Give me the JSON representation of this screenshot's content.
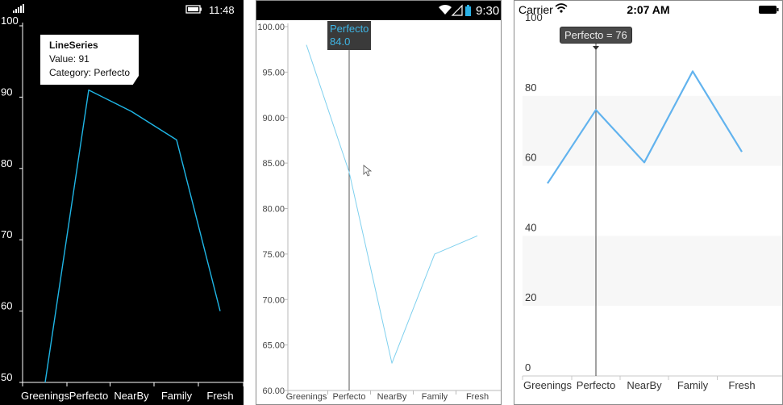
{
  "chart_data": [
    {
      "type": "line",
      "platform": "windows-phone",
      "categories": [
        "Greenings",
        "Perfecto",
        "NearBy",
        "Family",
        "Fresh"
      ],
      "series": [
        {
          "name": "LineSeries",
          "values": [
            50,
            91,
            88,
            84,
            60
          ]
        }
      ],
      "ylim": [
        50,
        100
      ],
      "yticks": [
        "50",
        "60",
        "70",
        "80",
        "90",
        "100"
      ],
      "grid": false,
      "line_color": "#1fb6e6",
      "background": "#000000",
      "tooltip": {
        "title": "LineSeries",
        "value_label": "Value: 91",
        "category_label": "Category: Perfecto"
      }
    },
    {
      "type": "line",
      "platform": "android",
      "categories": [
        "Greenings",
        "Perfecto",
        "NearBy",
        "Family",
        "Fresh"
      ],
      "series": [
        {
          "values": [
            98,
            84,
            63,
            75,
            77
          ]
        }
      ],
      "ylim": [
        60,
        100
      ],
      "yticks": [
        "60.00",
        "65.00",
        "70.00",
        "75.00",
        "80.00",
        "85.00",
        "90.00",
        "95.00",
        "100.00"
      ],
      "grid": false,
      "line_color": "#7fd0ee",
      "tracker_category": "Perfecto",
      "tooltip": {
        "category": "Perfecto",
        "value": "84.0"
      }
    },
    {
      "type": "line",
      "platform": "ios",
      "categories": [
        "Greenings",
        "Perfecto",
        "NearBy",
        "Family",
        "Fresh"
      ],
      "series": [
        {
          "values": [
            55,
            76,
            61,
            87,
            64
          ]
        }
      ],
      "ylim": [
        0,
        100
      ],
      "yticks": [
        "0",
        "20",
        "40",
        "60",
        "80",
        "100"
      ],
      "grid": "alternating-bands",
      "line_color": "#62b3ee",
      "tracker_category": "Perfecto",
      "tooltip": {
        "text": "Perfecto = 76"
      }
    }
  ],
  "status_bars": {
    "windows_phone": {
      "time": "11:48"
    },
    "android": {
      "time": "9:30"
    },
    "ios": {
      "carrier": "Carrier",
      "time": "2:07 AM"
    }
  },
  "icons": [
    "signal-icon",
    "battery-icon",
    "wifi-icon",
    "cursor-icon"
  ]
}
